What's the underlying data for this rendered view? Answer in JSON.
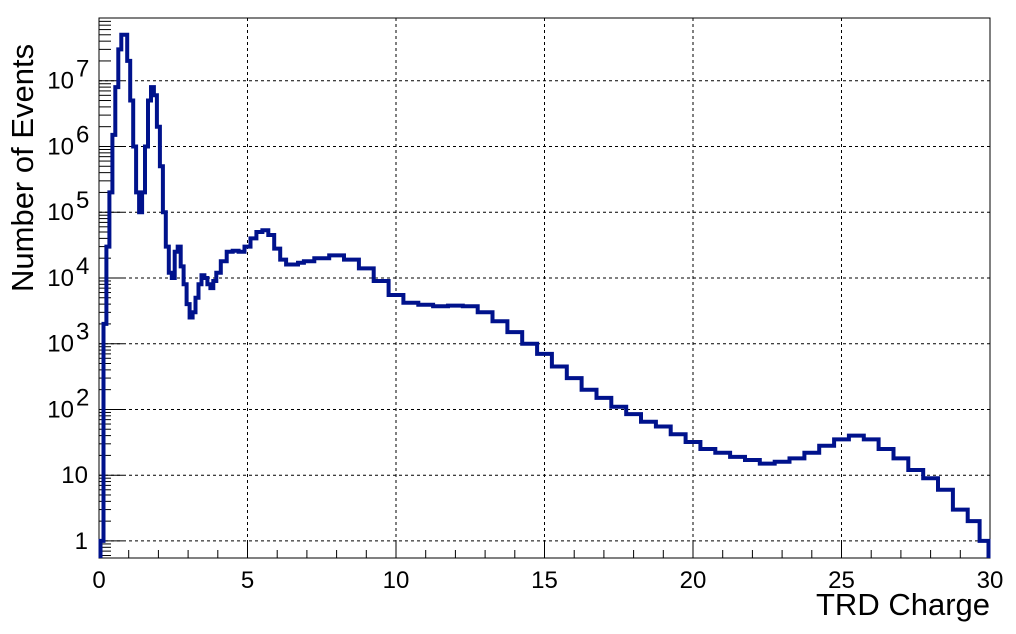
{
  "chart_data": {
    "type": "histogram-step",
    "xlabel": "TRD Charge",
    "ylabel": "Number of Events",
    "xlim": [
      0,
      30
    ],
    "ylim": [
      0.55,
      90000000
    ],
    "yscale": "log",
    "grid": true,
    "x_ticks": [
      {
        "value": 0,
        "label": "0"
      },
      {
        "value": 5,
        "label": "5"
      },
      {
        "value": 10,
        "label": "10"
      },
      {
        "value": 15,
        "label": "15"
      },
      {
        "value": 20,
        "label": "20"
      },
      {
        "value": 25,
        "label": "25"
      },
      {
        "value": 30,
        "label": "30"
      }
    ],
    "y_ticks": [
      {
        "value": 1,
        "base": "1",
        "exp": ""
      },
      {
        "value": 10,
        "base": "10",
        "exp": ""
      },
      {
        "value": 100,
        "base": "10",
        "exp": "2"
      },
      {
        "value": 1000,
        "base": "10",
        "exp": "3"
      },
      {
        "value": 10000,
        "base": "10",
        "exp": "4"
      },
      {
        "value": 100000,
        "base": "10",
        "exp": "5"
      },
      {
        "value": 1000000,
        "base": "10",
        "exp": "6"
      },
      {
        "value": 10000000,
        "base": "10",
        "exp": "7"
      }
    ],
    "series": [
      {
        "color": "#00128c",
        "x": [
          0.1,
          0.2,
          0.3,
          0.4,
          0.5,
          0.6,
          0.7,
          0.8,
          0.9,
          1.0,
          1.1,
          1.2,
          1.3,
          1.4,
          1.5,
          1.6,
          1.7,
          1.8,
          1.9,
          2.0,
          2.1,
          2.2,
          2.3,
          2.4,
          2.5,
          2.6,
          2.7,
          2.8,
          2.9,
          3.0,
          3.1,
          3.2,
          3.3,
          3.4,
          3.5,
          3.6,
          3.7,
          3.8,
          3.9,
          4.0,
          4.2,
          4.4,
          4.6,
          4.8,
          5.0,
          5.2,
          5.4,
          5.6,
          5.8,
          6.0,
          6.2,
          6.4,
          6.6,
          6.8,
          7.0,
          7.5,
          8.0,
          8.5,
          9.0,
          9.5,
          10.0,
          10.5,
          11.0,
          11.5,
          12.0,
          12.5,
          13.0,
          13.5,
          14.0,
          14.5,
          15.0,
          15.5,
          16.0,
          16.5,
          17.0,
          17.5,
          18.0,
          18.5,
          19.0,
          19.5,
          20.0,
          20.5,
          21.0,
          21.5,
          22.0,
          22.5,
          23.0,
          23.5,
          24.0,
          24.5,
          25.0,
          25.5,
          26.0,
          26.5,
          27.0,
          27.5,
          28.0,
          28.5,
          29.0,
          29.5,
          29.8
        ],
        "values": [
          1,
          2000,
          30000,
          200000,
          1500000,
          8000000,
          30000000,
          50000000,
          50000000,
          20000000,
          5000000,
          1000000,
          200000,
          100000,
          200000,
          1000000,
          5000000,
          8000000,
          6000000,
          2000000,
          500000,
          100000,
          30000,
          12000,
          10000,
          25000,
          30000,
          15000,
          8000,
          4000,
          2500,
          3000,
          5000,
          8000,
          11000,
          10000,
          8000,
          7000,
          9000,
          12000,
          18000,
          25000,
          26000,
          25000,
          30000,
          40000,
          50000,
          53000,
          45000,
          28000,
          19000,
          16000,
          16000,
          17000,
          18000,
          20000,
          22000,
          19000,
          14000,
          9000,
          5500,
          4200,
          3900,
          3700,
          3800,
          3700,
          3000,
          2200,
          1500,
          1000,
          700,
          450,
          300,
          200,
          150,
          110,
          85,
          65,
          55,
          42,
          32,
          25,
          22,
          19,
          17,
          15,
          16,
          18,
          22,
          28,
          35,
          40,
          35,
          25,
          18,
          12,
          9,
          6,
          3,
          2,
          1
        ]
      }
    ]
  }
}
